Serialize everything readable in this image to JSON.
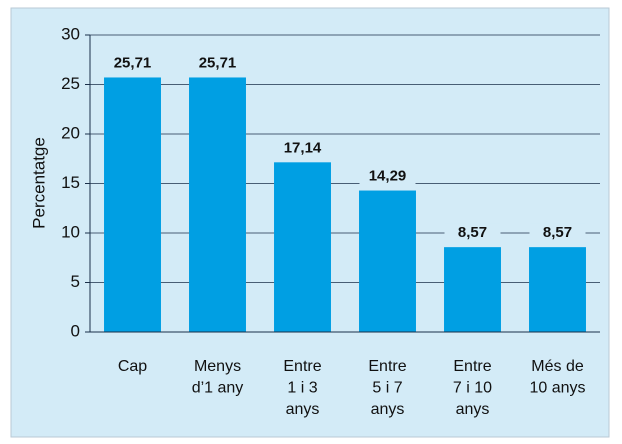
{
  "chart_data": {
    "type": "bar",
    "y_label": "Percentatge",
    "categories": [
      "Cap",
      "Menys\nd’1 any",
      "Entre\n1 i 3\nanys",
      "Entre\n5 i 7\nanys",
      "Entre\n7 i 10\nanys",
      "Més de\n10 anys"
    ],
    "values": [
      25.71,
      25.71,
      17.14,
      14.29,
      8.57,
      8.57
    ],
    "value_labels": [
      "25,71",
      "25,71",
      "17,14",
      "14,29",
      "8,57",
      "8,57"
    ],
    "color": "#009fe3",
    "ylim": [
      0,
      30
    ],
    "yticks": [
      0,
      5,
      10,
      15,
      20,
      25,
      30
    ],
    "grid": true
  }
}
